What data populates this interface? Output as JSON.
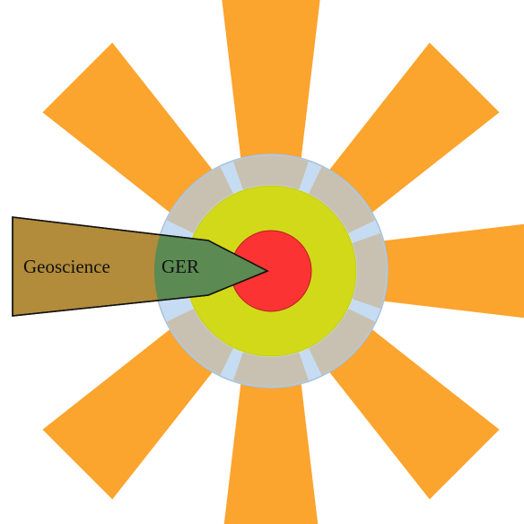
{
  "nodes": [
    {
      "label": "Geoscience"
    },
    {
      "label": "GER"
    }
  ]
}
